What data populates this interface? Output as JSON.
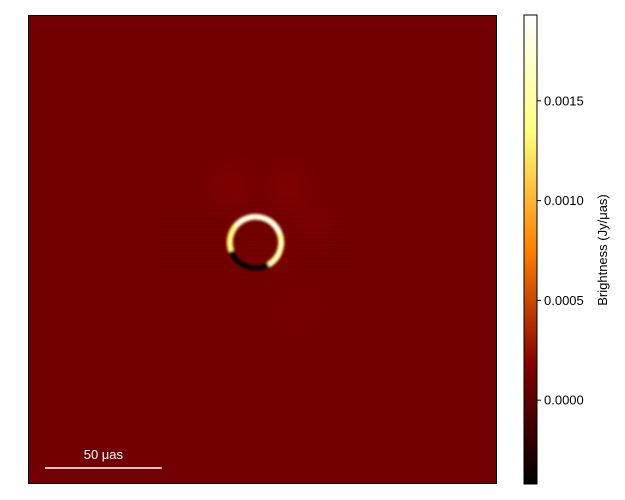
{
  "chart_data": {
    "type": "heatmap",
    "title": "",
    "colorbar": {
      "label": "Brightness (Jy/μas)",
      "colormap": "afmhot",
      "range": [
        -0.00042,
        0.00193
      ],
      "ticks": [
        0.0,
        0.0005,
        0.001,
        0.0015
      ],
      "tick_labels": [
        "0.0000",
        "0.0005",
        "0.0010",
        "0.0015"
      ]
    },
    "scale_bar": {
      "label": "50 μas",
      "length_uas": 50
    },
    "image": {
      "background_value": 0.00011,
      "ring": {
        "center": [
          -3,
          3
        ],
        "radius_uas": 11,
        "peak_value": 0.0019,
        "dark_side_value": -0.0004
      },
      "blobs": [
        {
          "center": [
            -14,
            27
          ],
          "value": 0.00016
        },
        {
          "center": [
            11,
            26
          ],
          "value": 0.00017
        },
        {
          "center": [
            22,
            10
          ],
          "value": 0.00015
        },
        {
          "center": [
            2,
            -5
          ],
          "value": 0.00013
        },
        {
          "center": [
            15,
            -26
          ],
          "value": 0.00013
        }
      ]
    }
  }
}
